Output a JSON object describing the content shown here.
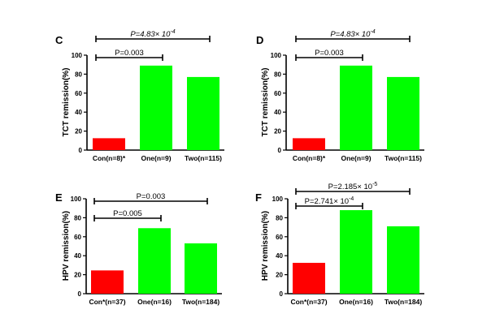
{
  "chart_data": [
    {
      "type": "bar",
      "panel": "C",
      "ylabel": "TCT remission(%)",
      "ylim": [
        0,
        100
      ],
      "yticks": [
        "0",
        "20",
        "40",
        "60",
        "80",
        "100"
      ],
      "categories": [
        "Con(n=8)*",
        "One(n=9)",
        "Two(n=115)"
      ],
      "values": [
        12.5,
        89,
        77
      ],
      "colors": [
        "#ff0000",
        "#00ff00",
        "#00ff00"
      ],
      "comparisons": [
        {
          "from": 0,
          "to": 2,
          "label_main": "P=4.83× 10",
          "label_exp": "-4",
          "italic": true
        },
        {
          "from": 0,
          "to": 1,
          "label_main": "P=0.003",
          "label_exp": "",
          "italic": false
        }
      ]
    },
    {
      "type": "bar",
      "panel": "D",
      "ylabel": "TCT remission(%)",
      "ylim": [
        0,
        100
      ],
      "yticks": [
        "0",
        "20",
        "40",
        "60",
        "80",
        "100"
      ],
      "categories": [
        "Con(n=8)*",
        "One(n=9)",
        "Two(n=115)"
      ],
      "values": [
        12.5,
        89,
        77
      ],
      "colors": [
        "#ff0000",
        "#00ff00",
        "#00ff00"
      ],
      "comparisons": [
        {
          "from": 0,
          "to": 2,
          "label_main": "P=4.83× 10",
          "label_exp": "-4",
          "italic": true
        },
        {
          "from": 0,
          "to": 1,
          "label_main": "P=0.003",
          "label_exp": "",
          "italic": false
        }
      ]
    },
    {
      "type": "bar",
      "panel": "E",
      "ylabel": "HPV remission(%)",
      "ylim": [
        0,
        100
      ],
      "yticks": [
        "0",
        "20",
        "40",
        "60",
        "80",
        "100"
      ],
      "categories": [
        "Con*(n=37)",
        "One(n=16)",
        "Two(n=184)"
      ],
      "values": [
        24.5,
        69,
        53
      ],
      "colors": [
        "#ff0000",
        "#00ff00",
        "#00ff00"
      ],
      "comparisons": [
        {
          "from": 0,
          "to": 2,
          "label_main": "P=0.003",
          "label_exp": "",
          "italic": false
        },
        {
          "from": 0,
          "to": 1,
          "label_main": "P=0.005",
          "label_exp": "",
          "italic": false
        }
      ]
    },
    {
      "type": "bar",
      "panel": "F",
      "ylabel": "HPV remission(%)",
      "ylim": [
        0,
        100
      ],
      "yticks": [
        "0",
        "20",
        "40",
        "60",
        "80",
        "100"
      ],
      "categories": [
        "Con*(n=37)",
        "One(n=16)",
        "Two(n=184)"
      ],
      "values": [
        32.5,
        88,
        71
      ],
      "colors": [
        "#ff0000",
        "#00ff00",
        "#00ff00"
      ],
      "comparisons": [
        {
          "from": 0,
          "to": 2,
          "label_main": "P=2.185× 10",
          "label_exp": "-5",
          "italic": false
        },
        {
          "from": 0,
          "to": 1,
          "label_main": "P=2.741× 10",
          "label_exp": "-4",
          "italic": false
        }
      ]
    }
  ]
}
